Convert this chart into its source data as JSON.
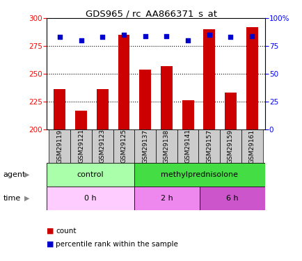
{
  "title": "GDS965 / rc_AA866371_s_at",
  "samples": [
    "GSM29119",
    "GSM29121",
    "GSM29123",
    "GSM29125",
    "GSM29137",
    "GSM29138",
    "GSM29141",
    "GSM29157",
    "GSM29159",
    "GSM29161"
  ],
  "bar_values": [
    236,
    217,
    236,
    285,
    254,
    257,
    226,
    290,
    233,
    292
  ],
  "percentile_values": [
    83,
    80,
    83,
    85,
    84,
    84,
    80,
    85,
    83,
    84
  ],
  "bar_color": "#cc0000",
  "dot_color": "#0000cc",
  "ylim_left": [
    200,
    300
  ],
  "ylim_right": [
    0,
    100
  ],
  "yticks_left": [
    200,
    225,
    250,
    275,
    300
  ],
  "yticks_right": [
    0,
    25,
    50,
    75,
    100
  ],
  "agent_labels": [
    {
      "text": "control",
      "start": 0,
      "end": 4,
      "color": "#aaffaa"
    },
    {
      "text": "methylprednisolone",
      "start": 4,
      "end": 10,
      "color": "#44dd44"
    }
  ],
  "time_labels": [
    {
      "text": "0 h",
      "start": 0,
      "end": 4,
      "color": "#ffccff"
    },
    {
      "text": "2 h",
      "start": 4,
      "end": 7,
      "color": "#ee88ee"
    },
    {
      "text": "6 h",
      "start": 7,
      "end": 10,
      "color": "#cc55cc"
    }
  ],
  "legend_count_color": "#cc0000",
  "legend_dot_color": "#0000cc",
  "agent_row_label": "agent",
  "time_row_label": "time",
  "background_color": "#ffffff",
  "tick_box_color": "#cccccc",
  "bar_width": 0.55,
  "n_samples": 10
}
